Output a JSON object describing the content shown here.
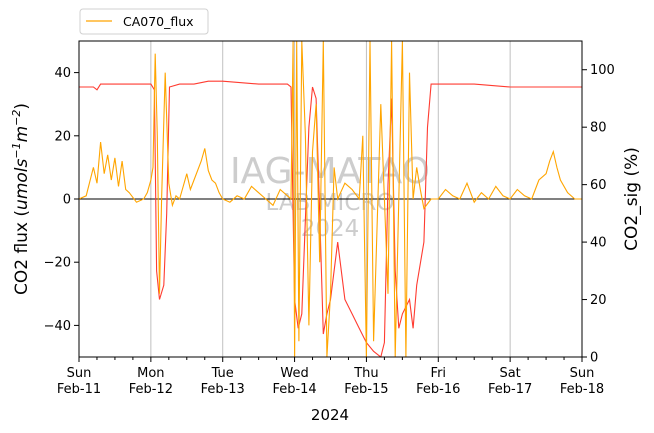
{
  "chart_data": {
    "type": "line",
    "xlabel": "2024",
    "ylabel_left_prefix": "CO2 flux (",
    "ylabel_left_units": "umols",
    "ylabel_right": "CO2_sig (%)",
    "legend": [
      "CA070_flux"
    ],
    "legend_position": "top-left (above plot)",
    "watermark": [
      "IAG-MATAO",
      "LAB MICRO",
      "2024"
    ],
    "grid": "vertical only, at day boundaries",
    "zero_line": true,
    "x_range": [
      "2024-02-11",
      "2024-02-18"
    ],
    "x_ticks": [
      {
        "day": "Sun",
        "date": "Feb-11"
      },
      {
        "day": "Mon",
        "date": "Feb-12"
      },
      {
        "day": "Tue",
        "date": "Feb-13"
      },
      {
        "day": "Wed",
        "date": "Feb-14"
      },
      {
        "day": "Thu",
        "date": "Feb-15"
      },
      {
        "day": "Fri",
        "date": "Feb-16"
      },
      {
        "day": "Sat",
        "date": "Feb-17"
      },
      {
        "day": "Sun",
        "date": "Feb-18"
      }
    ],
    "y_left_range": [
      -50,
      50
    ],
    "y_left_ticks": [
      -40,
      -20,
      0,
      20,
      40
    ],
    "y_right_range": [
      0,
      110
    ],
    "y_right_ticks": [
      0,
      20,
      40,
      60,
      80,
      100
    ],
    "colors": {
      "flux": "#ffa500",
      "sig": "#ff3b30",
      "right_axis_label": "#ff9e9e",
      "grid": "#c0c0c0",
      "watermark": "#c8c8c8"
    },
    "series": [
      {
        "name": "CA070_flux",
        "axis": "left",
        "points": [
          [
            0.0,
            0
          ],
          [
            0.1,
            1
          ],
          [
            0.2,
            10
          ],
          [
            0.25,
            5
          ],
          [
            0.3,
            18
          ],
          [
            0.35,
            8
          ],
          [
            0.4,
            14
          ],
          [
            0.45,
            6
          ],
          [
            0.5,
            13
          ],
          [
            0.55,
            4
          ],
          [
            0.6,
            12
          ],
          [
            0.65,
            3
          ],
          [
            0.7,
            2
          ],
          [
            0.8,
            -1
          ],
          [
            0.9,
            0
          ],
          [
            0.95,
            2
          ],
          [
            1.0,
            6
          ],
          [
            1.03,
            10
          ],
          [
            1.06,
            46
          ],
          [
            1.09,
            20
          ],
          [
            1.12,
            -30
          ],
          [
            1.15,
            0
          ],
          [
            1.2,
            40
          ],
          [
            1.25,
            5
          ],
          [
            1.3,
            -2
          ],
          [
            1.35,
            1
          ],
          [
            1.4,
            0
          ],
          [
            1.45,
            4
          ],
          [
            1.5,
            8
          ],
          [
            1.55,
            3
          ],
          [
            1.6,
            6
          ],
          [
            1.7,
            12
          ],
          [
            1.75,
            16
          ],
          [
            1.8,
            9
          ],
          [
            1.85,
            6
          ],
          [
            1.9,
            5
          ],
          [
            1.95,
            2
          ],
          [
            2.0,
            0
          ],
          [
            2.1,
            -1
          ],
          [
            2.2,
            1
          ],
          [
            2.3,
            0
          ],
          [
            2.4,
            4
          ],
          [
            2.5,
            2
          ],
          [
            2.6,
            0
          ],
          [
            2.7,
            -2
          ],
          [
            2.8,
            3
          ],
          [
            2.9,
            1
          ],
          [
            2.95,
            0
          ],
          [
            2.98,
            50
          ],
          [
            3.0,
            -50
          ],
          [
            3.03,
            50
          ],
          [
            3.06,
            -45
          ],
          [
            3.1,
            50
          ],
          [
            3.15,
            20
          ],
          [
            3.2,
            -40
          ],
          [
            3.25,
            15
          ],
          [
            3.3,
            30
          ],
          [
            3.35,
            -20
          ],
          [
            3.4,
            50
          ],
          [
            3.45,
            -50
          ],
          [
            3.5,
            -30
          ],
          [
            3.55,
            10
          ],
          [
            3.6,
            0
          ],
          [
            3.7,
            5
          ],
          [
            3.8,
            3
          ],
          [
            3.9,
            0
          ],
          [
            3.95,
            20
          ],
          [
            4.0,
            -50
          ],
          [
            4.05,
            50
          ],
          [
            4.1,
            -45
          ],
          [
            4.2,
            30
          ],
          [
            4.3,
            -30
          ],
          [
            4.35,
            50
          ],
          [
            4.4,
            -50
          ],
          [
            4.5,
            50
          ],
          [
            4.55,
            -50
          ],
          [
            4.6,
            40
          ],
          [
            4.65,
            0
          ],
          [
            4.7,
            10
          ],
          [
            4.75,
            3
          ],
          [
            4.8,
            -3
          ],
          [
            4.9,
            0
          ],
          [
            5.0,
            0
          ],
          [
            5.1,
            3
          ],
          [
            5.2,
            1
          ],
          [
            5.3,
            0
          ],
          [
            5.4,
            5
          ],
          [
            5.5,
            -1
          ],
          [
            5.6,
            2
          ],
          [
            5.7,
            0
          ],
          [
            5.8,
            4
          ],
          [
            5.9,
            1
          ],
          [
            6.0,
            0
          ],
          [
            6.1,
            3
          ],
          [
            6.2,
            1
          ],
          [
            6.3,
            0
          ],
          [
            6.4,
            6
          ],
          [
            6.5,
            8
          ],
          [
            6.55,
            12
          ],
          [
            6.6,
            15
          ],
          [
            6.65,
            10
          ],
          [
            6.7,
            6
          ],
          [
            6.8,
            2
          ],
          [
            6.9,
            0
          ],
          [
            7.0,
            0
          ]
        ]
      },
      {
        "name": "CO2_sig",
        "axis": "right",
        "points": [
          [
            0.0,
            94
          ],
          [
            0.2,
            94
          ],
          [
            0.25,
            93
          ],
          [
            0.3,
            95
          ],
          [
            0.5,
            95
          ],
          [
            0.7,
            95
          ],
          [
            0.9,
            95
          ],
          [
            1.0,
            95
          ],
          [
            1.05,
            93
          ],
          [
            1.08,
            30
          ],
          [
            1.12,
            20
          ],
          [
            1.18,
            25
          ],
          [
            1.22,
            50
          ],
          [
            1.26,
            94
          ],
          [
            1.4,
            95
          ],
          [
            1.6,
            95
          ],
          [
            1.8,
            96
          ],
          [
            2.0,
            96
          ],
          [
            2.5,
            95
          ],
          [
            2.9,
            95
          ],
          [
            2.95,
            94
          ],
          [
            2.98,
            50
          ],
          [
            3.0,
            20
          ],
          [
            3.05,
            10
          ],
          [
            3.1,
            15
          ],
          [
            3.2,
            80
          ],
          [
            3.25,
            94
          ],
          [
            3.3,
            90
          ],
          [
            3.35,
            50
          ],
          [
            3.4,
            8
          ],
          [
            3.45,
            15
          ],
          [
            3.5,
            20
          ],
          [
            3.6,
            40
          ],
          [
            3.7,
            20
          ],
          [
            3.8,
            15
          ],
          [
            3.9,
            10
          ],
          [
            4.0,
            5
          ],
          [
            4.1,
            2
          ],
          [
            4.2,
            0
          ],
          [
            4.25,
            5
          ],
          [
            4.3,
            60
          ],
          [
            4.35,
            90
          ],
          [
            4.4,
            30
          ],
          [
            4.45,
            10
          ],
          [
            4.5,
            15
          ],
          [
            4.6,
            20
          ],
          [
            4.65,
            10
          ],
          [
            4.7,
            25
          ],
          [
            4.8,
            40
          ],
          [
            4.85,
            80
          ],
          [
            4.9,
            95
          ],
          [
            5.0,
            95
          ],
          [
            5.5,
            95
          ],
          [
            6.0,
            94
          ],
          [
            6.5,
            94
          ],
          [
            7.0,
            94
          ]
        ]
      }
    ]
  }
}
